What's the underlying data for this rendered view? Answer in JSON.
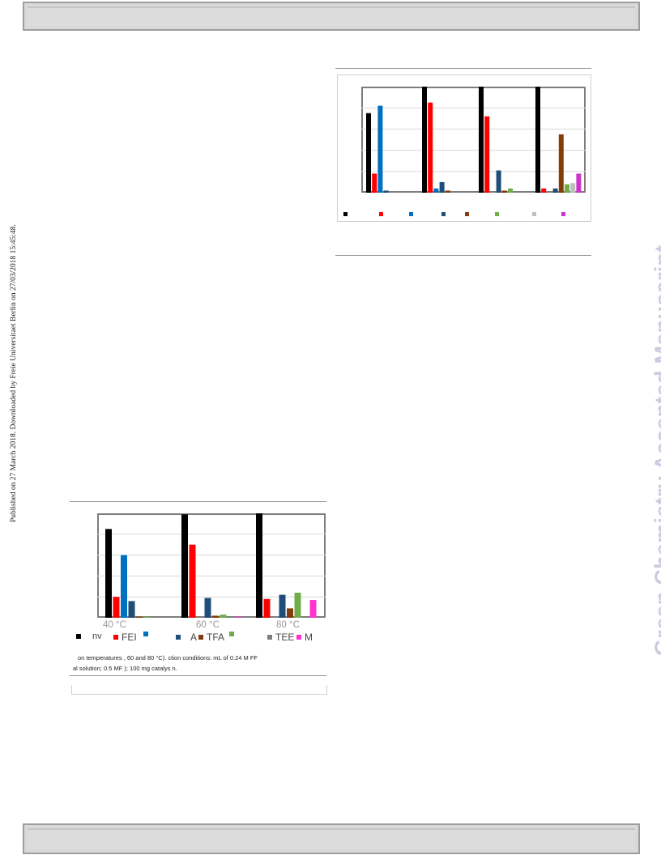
{
  "side_note": "Published on 27 March 2018. Downloaded by Freie Universitaet Berlin on 27/03/2018 15:45:48.",
  "watermark": "Green Chemistry Accepted Manuscript",
  "colors": {
    "black": "#000000",
    "red": "#ff0000",
    "blue": "#0070c0",
    "navy": "#1f4e79",
    "brown": "#843c0c",
    "green": "#70ad47",
    "grey": "#7f7f7f",
    "lightgrey": "#bfbfbf",
    "magenta": "#ff33cc"
  },
  "figure_left": {
    "categories": [
      "40 °C",
      "60 °C",
      "80 °C"
    ],
    "legend": [
      {
        "label": "nv",
        "color": "#000000"
      },
      {
        "label": "FEI",
        "color": "#ff0000"
      },
      {
        "label": "",
        "color": "#0070c0"
      },
      {
        "label": "A",
        "color": "#1f4e79"
      },
      {
        "label": "TFA",
        "color": "#843c0c"
      },
      {
        "label": "",
        "color": "#70ad47"
      },
      {
        "label": "TEE",
        "color": "#7f7f7f"
      },
      {
        "label": "M",
        "color": "#ff33cc"
      }
    ],
    "caption_line1": "on temperatures , 60 and 80 °C). ction conditions: mL of 0.24 M FF",
    "caption_line2": "al solution; 0.5 MF ); 100 mg catalys n."
  },
  "chart_data": [
    {
      "type": "bar",
      "categories": [
        "40 °C",
        "60 °C",
        "80 °C"
      ],
      "ylim": [
        0,
        100
      ],
      "grid": true,
      "legend_position": "bottom",
      "series": [
        {
          "name": "nv",
          "color": "#000000",
          "values": [
            85,
            99,
            100
          ]
        },
        {
          "name": "FEI",
          "color": "#ff0000",
          "values": [
            20,
            70,
            18
          ]
        },
        {
          "color": "#0070c0",
          "values": [
            60,
            0,
            0
          ]
        },
        {
          "name": "A",
          "color": "#1f4e79",
          "values": [
            16,
            19,
            22
          ]
        },
        {
          "name": "TFA",
          "color": "#843c0c",
          "values": [
            1,
            2,
            9
          ]
        },
        {
          "color": "#70ad47",
          "values": [
            1,
            3,
            24
          ]
        },
        {
          "name": "TEE",
          "color": "#7f7f7f",
          "values": [
            0,
            0,
            0
          ]
        },
        {
          "name": "M",
          "color": "#ff33cc",
          "values": [
            0,
            1,
            17
          ]
        }
      ]
    },
    {
      "type": "bar",
      "categories": [
        "",
        "",
        "",
        ""
      ],
      "ylim": [
        0,
        100
      ],
      "grid": true,
      "legend_position": "bottom",
      "series": [
        {
          "color": "#000000",
          "values": [
            75,
            100,
            100,
            102
          ]
        },
        {
          "color": "#ff0000",
          "values": [
            18,
            85,
            72,
            4
          ]
        },
        {
          "color": "#0070c0",
          "values": [
            82,
            4,
            0,
            0
          ]
        },
        {
          "color": "#1f4e79",
          "values": [
            2,
            10,
            21,
            4
          ]
        },
        {
          "color": "#843c0c",
          "values": [
            0,
            2,
            2,
            55
          ]
        },
        {
          "color": "#70ad47",
          "values": [
            0,
            0,
            4,
            8
          ]
        },
        {
          "color": "#bfbfbf",
          "values": [
            0,
            0,
            0,
            9
          ]
        },
        {
          "color": "#cc33cc",
          "values": [
            0,
            0,
            0,
            18
          ]
        }
      ]
    }
  ]
}
